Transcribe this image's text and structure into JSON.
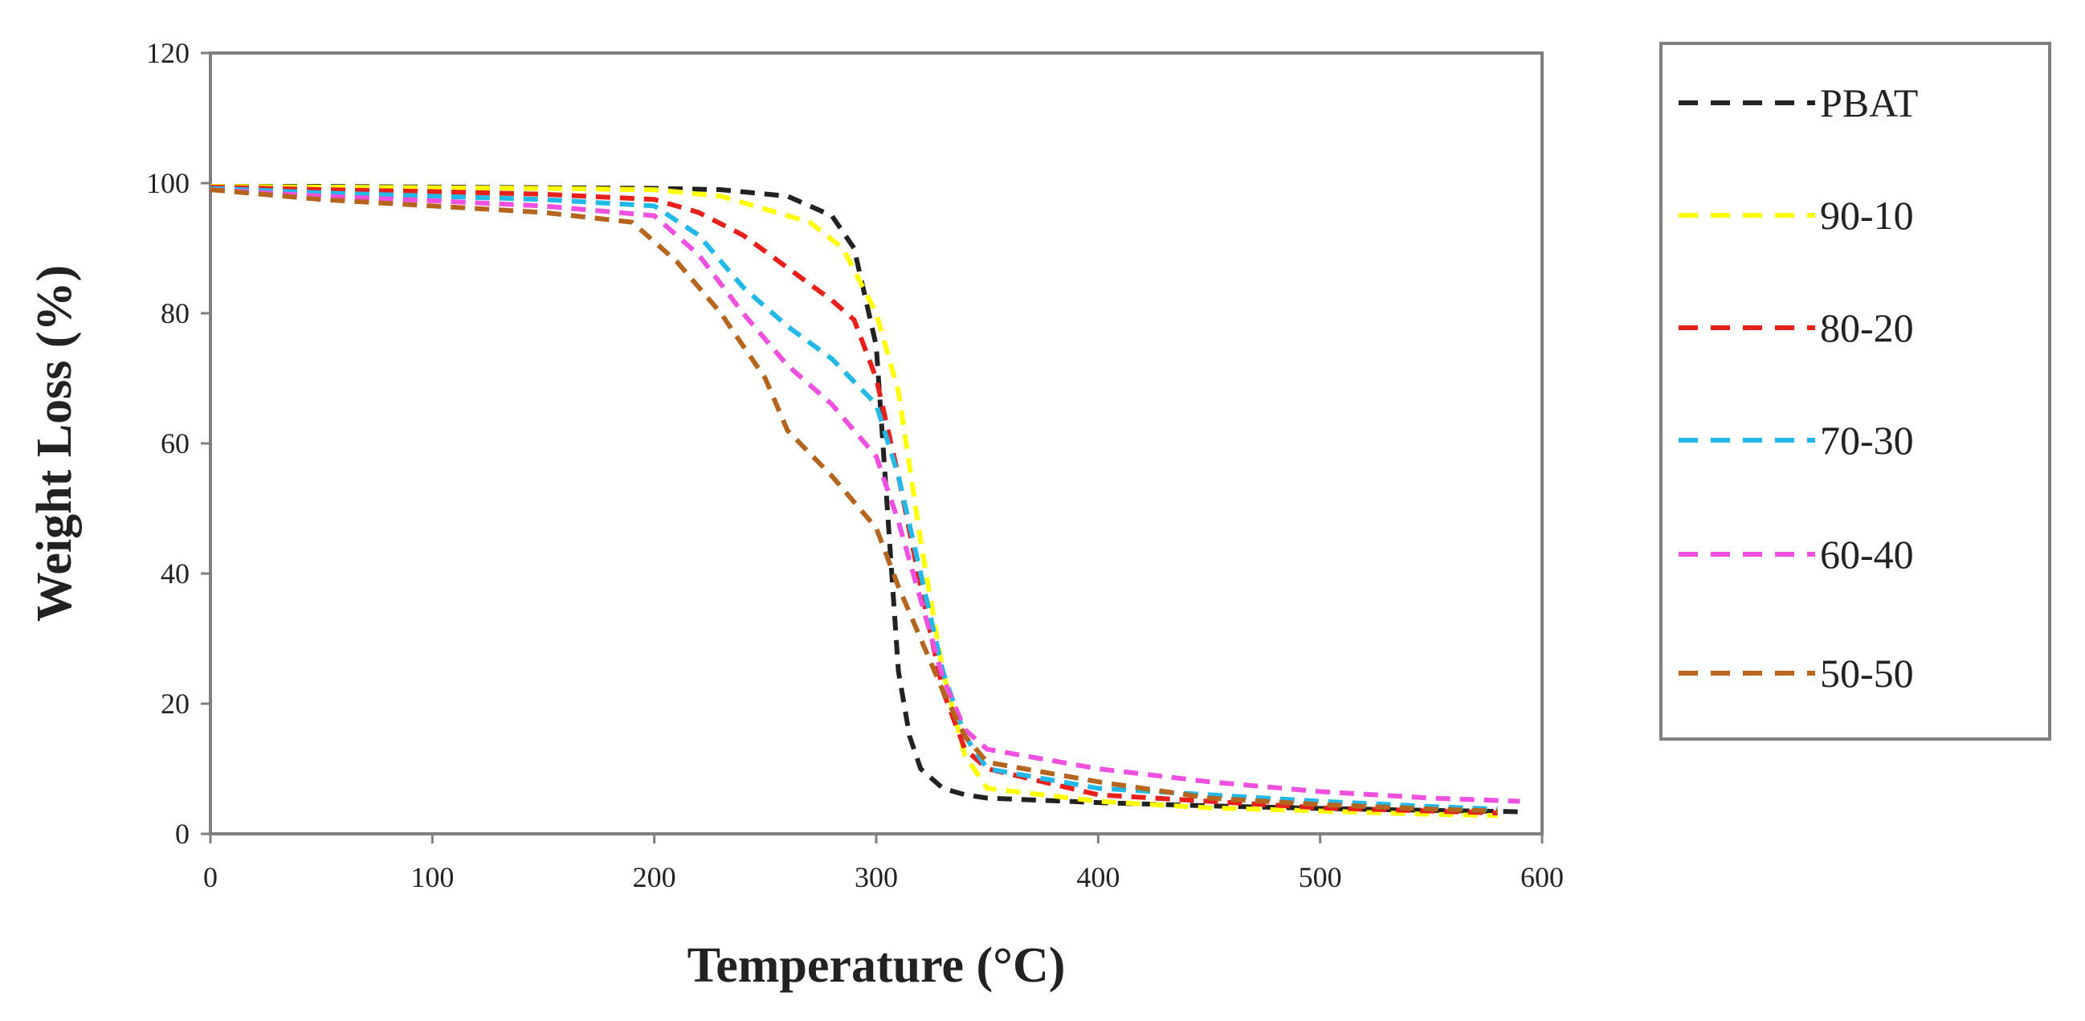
{
  "chart_data": {
    "type": "line",
    "title": "",
    "xlabel": "Temperature (°C)",
    "ylabel": "Weight Loss (%)",
    "xlim": [
      0,
      600
    ],
    "ylim": [
      0,
      120
    ],
    "xticks": [
      0,
      100,
      200,
      300,
      400,
      500,
      600
    ],
    "yticks": [
      0,
      20,
      40,
      60,
      80,
      100,
      120
    ],
    "grid": false,
    "legend_position": "right",
    "series": [
      {
        "name": "PBAT",
        "color": "#222222",
        "x": [
          0,
          50,
          100,
          150,
          200,
          230,
          260,
          280,
          290,
          300,
          305,
          310,
          315,
          320,
          330,
          340,
          350,
          400,
          450,
          500,
          550,
          590
        ],
        "y": [
          99.5,
          99.5,
          99.4,
          99.3,
          99.2,
          99.0,
          98.0,
          95.0,
          90.0,
          75.0,
          50.0,
          25.0,
          15.0,
          10.0,
          7.0,
          6.0,
          5.5,
          4.8,
          4.3,
          3.9,
          3.6,
          3.4
        ]
      },
      {
        "name": "90-10",
        "color": "#ffff00",
        "x": [
          0,
          50,
          100,
          150,
          200,
          230,
          250,
          270,
          285,
          300,
          310,
          320,
          330,
          340,
          350,
          400,
          450,
          500,
          550,
          580
        ],
        "y": [
          99.5,
          99.4,
          99.3,
          99.2,
          99.0,
          98.0,
          96.0,
          94.0,
          90.0,
          80.0,
          68.0,
          45.0,
          25.0,
          12.0,
          7.0,
          5.0,
          4.0,
          3.5,
          3.0,
          2.8
        ]
      },
      {
        "name": "80-20",
        "color": "#e8201c",
        "x": [
          0,
          50,
          100,
          150,
          200,
          220,
          240,
          260,
          280,
          290,
          300,
          310,
          320,
          330,
          340,
          350,
          400,
          450,
          500,
          550,
          580
        ],
        "y": [
          99.4,
          99.0,
          98.7,
          98.3,
          97.5,
          95.5,
          92.0,
          87.0,
          82.0,
          79.0,
          70.0,
          55.0,
          38.0,
          22.0,
          13.0,
          10.0,
          6.0,
          5.0,
          4.0,
          3.5,
          3.2
        ]
      },
      {
        "name": "70-30",
        "color": "#22b8e8",
        "x": [
          0,
          50,
          100,
          150,
          200,
          220,
          240,
          260,
          280,
          300,
          310,
          320,
          330,
          340,
          350,
          400,
          450,
          500,
          550,
          580
        ],
        "y": [
          99.2,
          98.5,
          98.0,
          97.5,
          96.5,
          92.0,
          84.0,
          78.0,
          73.0,
          66.0,
          55.0,
          40.0,
          25.0,
          15.0,
          10.0,
          7.0,
          6.0,
          5.0,
          4.2,
          3.8
        ]
      },
      {
        "name": "60-40",
        "color": "#f050e0",
        "x": [
          0,
          50,
          100,
          150,
          200,
          220,
          240,
          260,
          280,
          300,
          310,
          320,
          330,
          340,
          350,
          400,
          450,
          500,
          550,
          590
        ],
        "y": [
          99.0,
          98.0,
          97.3,
          96.5,
          95.0,
          89.0,
          80.0,
          72.0,
          66.0,
          58.0,
          48.0,
          36.0,
          24.0,
          16.0,
          13.0,
          10.0,
          8.0,
          6.5,
          5.5,
          5.0
        ]
      },
      {
        "name": "50-50",
        "color": "#b5651d",
        "x": [
          0,
          50,
          100,
          150,
          190,
          210,
          230,
          250,
          260,
          280,
          300,
          310,
          320,
          330,
          340,
          350,
          400,
          450,
          500,
          550,
          580
        ],
        "y": [
          99.0,
          97.5,
          96.5,
          95.5,
          94.0,
          88.0,
          80.0,
          70.0,
          62.0,
          55.0,
          47.0,
          38.0,
          30.0,
          22.0,
          15.0,
          11.0,
          8.0,
          5.5,
          4.5,
          3.8,
          3.5
        ]
      }
    ]
  }
}
